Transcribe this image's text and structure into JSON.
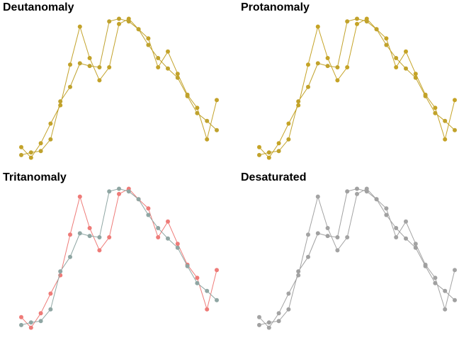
{
  "figure": {
    "background": "#ffffff"
  },
  "chart_data": [
    {
      "type": "line",
      "title": "Deutanomaly",
      "xlabel": "",
      "ylabel": "",
      "grid": false,
      "axes_visible": false,
      "x": [
        1,
        2,
        3,
        4,
        5,
        6,
        7,
        8,
        9,
        10,
        11,
        12,
        13,
        14,
        15,
        16,
        17,
        18,
        19,
        20,
        21
      ],
      "ylim": [
        0,
        12
      ],
      "xlim": [
        1,
        21
      ],
      "series": [
        {
          "color": "#c3a22a",
          "values": [
            1.2,
            0.4,
            1.5,
            3.0,
            4.4,
            7.5,
            10.4,
            8.0,
            6.3,
            7.3,
            10.6,
            11.0,
            10.2,
            9.5,
            7.3,
            8.5,
            6.8,
            5.2,
            4.2,
            1.8,
            4.8
          ]
        },
        {
          "color": "#bfa22e",
          "values": [
            0.6,
            0.8,
            0.9,
            1.8,
            4.7,
            5.8,
            7.6,
            7.4,
            7.3,
            10.8,
            11.0,
            10.8,
            10.2,
            9.0,
            8.0,
            7.2,
            6.5,
            5.1,
            3.8,
            3.2,
            2.5
          ]
        }
      ]
    },
    {
      "type": "line",
      "title": "Protanomaly",
      "xlabel": "",
      "ylabel": "",
      "grid": false,
      "axes_visible": false,
      "x": [
        1,
        2,
        3,
        4,
        5,
        6,
        7,
        8,
        9,
        10,
        11,
        12,
        13,
        14,
        15,
        16,
        17,
        18,
        19,
        20,
        21
      ],
      "ylim": [
        0,
        12
      ],
      "xlim": [
        1,
        21
      ],
      "series": [
        {
          "color": "#c5a326",
          "values": [
            1.2,
            0.4,
            1.5,
            3.0,
            4.4,
            7.5,
            10.4,
            8.0,
            6.3,
            7.3,
            10.6,
            11.0,
            10.2,
            9.5,
            7.3,
            8.5,
            6.8,
            5.2,
            4.2,
            1.8,
            4.8
          ]
        },
        {
          "color": "#c1a22b",
          "values": [
            0.6,
            0.8,
            0.9,
            1.8,
            4.7,
            5.8,
            7.6,
            7.4,
            7.3,
            10.8,
            11.0,
            10.8,
            10.2,
            9.0,
            8.0,
            7.2,
            6.5,
            5.1,
            3.8,
            3.2,
            2.5
          ]
        }
      ]
    },
    {
      "type": "line",
      "title": "Tritanomaly",
      "xlabel": "",
      "ylabel": "",
      "grid": false,
      "axes_visible": false,
      "x": [
        1,
        2,
        3,
        4,
        5,
        6,
        7,
        8,
        9,
        10,
        11,
        12,
        13,
        14,
        15,
        16,
        17,
        18,
        19,
        20,
        21
      ],
      "ylim": [
        0,
        12
      ],
      "xlim": [
        1,
        21
      ],
      "series": [
        {
          "color": "#ee7b78",
          "values": [
            1.2,
            0.4,
            1.5,
            3.0,
            4.4,
            7.5,
            10.4,
            8.0,
            6.3,
            7.3,
            10.6,
            11.0,
            10.2,
            9.5,
            7.3,
            8.5,
            6.8,
            5.2,
            4.2,
            1.8,
            4.8
          ]
        },
        {
          "color": "#8fa6a3",
          "values": [
            0.6,
            0.8,
            0.9,
            1.8,
            4.7,
            5.8,
            7.6,
            7.4,
            7.3,
            10.8,
            11.0,
            10.8,
            10.2,
            9.0,
            8.0,
            7.2,
            6.5,
            5.1,
            3.8,
            3.2,
            2.5
          ]
        }
      ]
    },
    {
      "type": "line",
      "title": "Desaturated",
      "xlabel": "",
      "ylabel": "",
      "grid": false,
      "axes_visible": false,
      "x": [
        1,
        2,
        3,
        4,
        5,
        6,
        7,
        8,
        9,
        10,
        11,
        12,
        13,
        14,
        15,
        16,
        17,
        18,
        19,
        20,
        21
      ],
      "ylim": [
        0,
        12
      ],
      "xlim": [
        1,
        21
      ],
      "series": [
        {
          "color": "#a3a3a3",
          "values": [
            1.2,
            0.4,
            1.5,
            3.0,
            4.4,
            7.5,
            10.4,
            8.0,
            6.3,
            7.3,
            10.6,
            11.0,
            10.2,
            9.5,
            7.3,
            8.5,
            6.8,
            5.2,
            4.2,
            1.8,
            4.8
          ]
        },
        {
          "color": "#a0a0a0",
          "values": [
            0.6,
            0.8,
            0.9,
            1.8,
            4.7,
            5.8,
            7.6,
            7.4,
            7.3,
            10.8,
            11.0,
            10.8,
            10.2,
            9.0,
            8.0,
            7.2,
            6.5,
            5.1,
            3.8,
            3.2,
            2.5
          ]
        }
      ]
    }
  ]
}
